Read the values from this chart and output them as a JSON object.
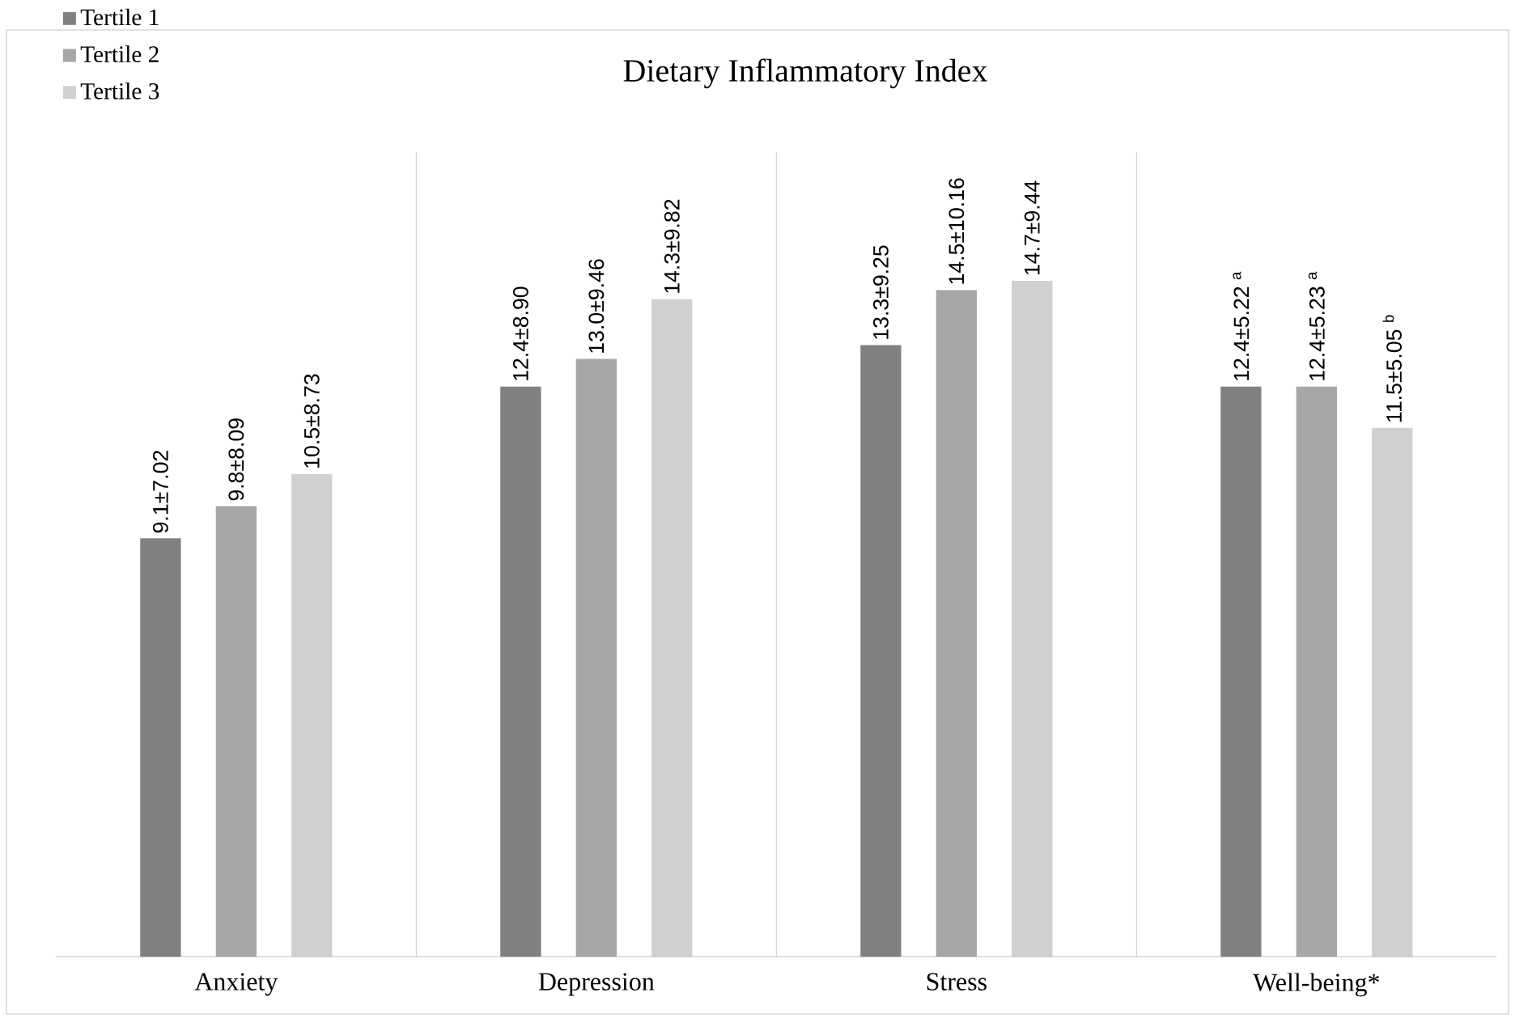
{
  "chart_data": {
    "type": "bar",
    "title": "Dietary Inflammatory Index",
    "categories": [
      "Anxiety",
      "Depression",
      "Stress",
      "Well-being*"
    ],
    "series": [
      {
        "name": "Tertile 1",
        "color": "#808080",
        "values": [
          9.1,
          12.4,
          13.3,
          12.4
        ],
        "value_labels": [
          "9.1±7.02",
          "12.4±8.90",
          "13.3±9.25",
          "12.4±5.22 $^{a}$"
        ]
      },
      {
        "name": "Tertile 2",
        "color": "#a6a6a6",
        "values": [
          9.8,
          13.0,
          14.5,
          12.4
        ],
        "value_labels": [
          "9.8±8.09",
          "13.0±9.46",
          "14.5±10.16",
          "12.4±5.23 $^{a}$"
        ]
      },
      {
        "name": "Tertile 3",
        "color": "#d0d0d0",
        "values": [
          10.5,
          14.3,
          14.7,
          11.5
        ],
        "value_labels": [
          "10.5±8.73",
          "14.3±9.82",
          "14.7±9.44",
          "11.5±5.05 $^{b}$"
        ]
      }
    ],
    "grid": "x",
    "legend": "top left"
  }
}
